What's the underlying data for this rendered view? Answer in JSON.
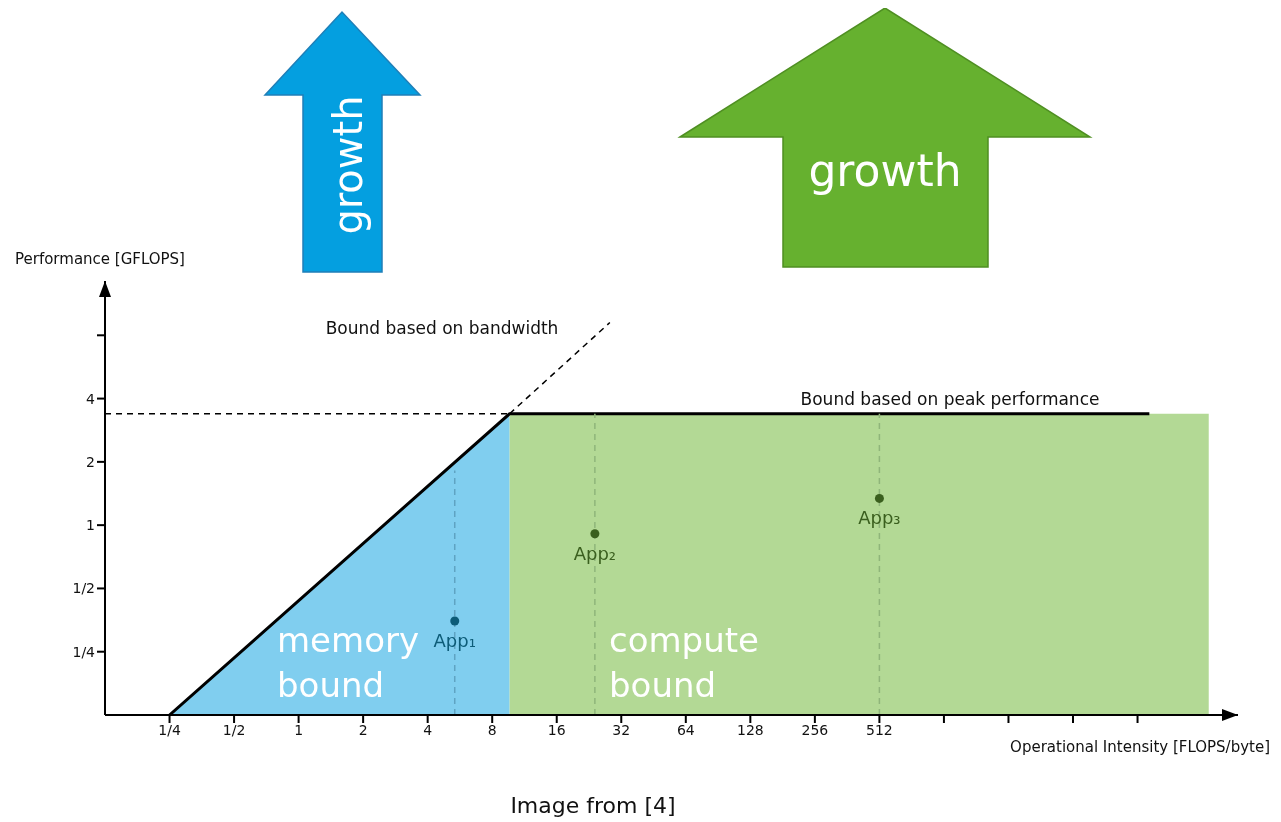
{
  "chart_data": {
    "type": "line",
    "xlabel": "Operational Intensity [FLOPS/byte]",
    "ylabel": "Performance [GFLOPS]",
    "log": "xy",
    "xlim": [
      0.125,
      24100
    ],
    "ylim": [
      0.125,
      14.5
    ],
    "xticks": [
      {
        "value": 0.25,
        "label": "1/4"
      },
      {
        "value": 0.5,
        "label": "1/2"
      },
      1,
      2,
      4,
      8,
      16,
      32,
      64,
      128,
      256,
      512,
      {
        "value": 1024,
        "label": null
      },
      {
        "value": 2048,
        "label": null
      },
      {
        "value": 4096,
        "label": null
      },
      {
        "value": 8192,
        "label": null
      }
    ],
    "yticks": [
      {
        "value": 0.25,
        "label": "1/4"
      },
      {
        "value": 0.5,
        "label": "1/2"
      },
      1,
      2,
      4,
      {
        "value": 8,
        "label": null
      }
    ],
    "grid": false,
    "legend": false,
    "series": [
      {
        "type": "area",
        "color": "#80ceef",
        "x": [
          0.25,
          9.65
        ],
        "values": [
          0.125,
          3.39
        ]
      },
      {
        "type": "area",
        "color": "#b3d995",
        "x": [
          9.65,
          17600
        ],
        "values": [
          3.39,
          3.39
        ]
      },
      {
        "color": "#000000",
        "line_style": "solid",
        "x": [
          0.25,
          9.65,
          9300
        ],
        "values": [
          0.125,
          3.39,
          3.39
        ]
      },
      {
        "color": "#000000",
        "line_style": "dashed",
        "x": [
          9.65,
          28.3
        ],
        "values": [
          3.39,
          9.2
        ]
      },
      {
        "color": "#000000",
        "line_style": "dashed",
        "x": [
          0.125,
          9.65
        ],
        "values": [
          3.39,
          3.39
        ]
      },
      {
        "color": "#5fa3c2",
        "line_style": "dashed",
        "x": [
          5.35,
          5.35
        ],
        "values": [
          0.125,
          1.82
        ]
      },
      {
        "color": "#8fb57a",
        "line_style": "dashed",
        "x": [
          24.1,
          24.1
        ],
        "values": [
          0.125,
          3.39
        ]
      },
      {
        "color": "#8fb57a",
        "line_style": "dashed",
        "x": [
          512,
          512
        ],
        "values": [
          0.125,
          3.39
        ]
      },
      {
        "type": "scatter",
        "color": "#0d5c78",
        "marker": "circle",
        "x": [
          5.35
        ],
        "values": [
          0.35
        ]
      },
      {
        "type": "scatter",
        "color": "#3a5f1e",
        "marker": "circle",
        "x": [
          24.1
        ],
        "values": [
          0.91
        ]
      },
      {
        "type": "scatter",
        "color": "#3a5f1e",
        "marker": "circle",
        "x": [
          512
        ],
        "values": [
          1.34
        ]
      }
    ],
    "annotations": [
      "Bound based on bandwidth",
      "Bound based on peak performance",
      "memory bound",
      "compute bound",
      {
        "text": "App₁",
        "x": 5.35,
        "y": 0.35
      },
      {
        "text": "App₂",
        "x": 24.1,
        "y": 0.91
      },
      {
        "text": "App₃",
        "x": 512,
        "y": 1.34
      },
      "growth",
      "growth",
      "Image from [4]"
    ]
  }
}
